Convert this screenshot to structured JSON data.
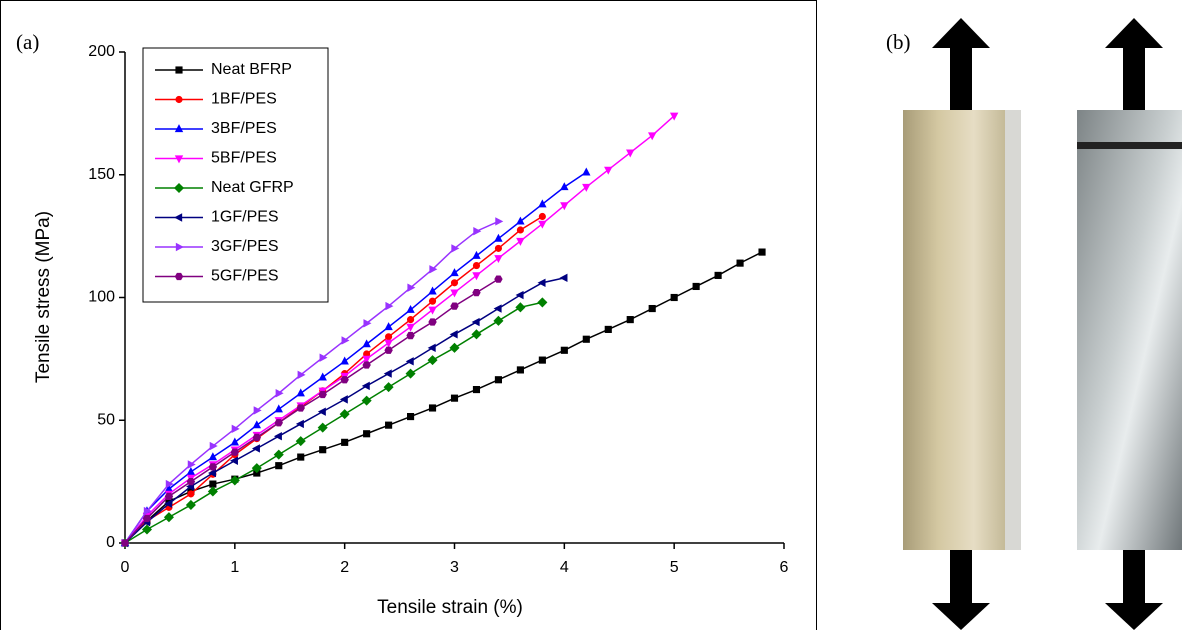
{
  "chart_data": {
    "type": "line",
    "panel_labels": [
      "(a)",
      "(b)"
    ],
    "xlabel": "Tensile strain (%)",
    "ylabel": "Tensile stress (MPa)",
    "x": [
      0,
      0.2,
      0.4,
      0.6,
      0.8,
      1.0,
      1.2,
      1.4,
      1.6,
      1.8,
      2.0,
      2.2,
      2.4,
      2.6,
      2.8,
      3.0,
      3.2,
      3.4,
      3.6,
      3.8,
      4.0,
      4.2,
      4.4,
      4.6,
      4.8,
      5.0,
      5.2,
      5.4,
      5.6,
      5.8
    ],
    "xlim": [
      0,
      6
    ],
    "xticks": [
      0,
      1,
      2,
      3,
      4,
      5,
      6
    ],
    "ylim": [
      0,
      200
    ],
    "yticks": [
      0,
      50,
      100,
      150,
      200
    ],
    "legend": "upper left",
    "series": [
      {
        "name": "Neat BFRP",
        "color": "#000000",
        "marker": "square",
        "values": [
          0,
          9,
          17,
          21,
          24,
          26,
          28.5,
          31.5,
          35,
          38,
          41,
          44.5,
          48,
          51.5,
          55,
          59,
          62.5,
          66.5,
          70.5,
          74.5,
          78.5,
          83,
          87,
          91,
          95.5,
          100,
          104.5,
          109,
          114,
          118.5
        ]
      },
      {
        "name": "1BF/PES",
        "color": "#ff0000",
        "marker": "circle",
        "values": [
          0,
          9,
          14.5,
          20,
          28,
          36,
          42.5,
          49,
          55.5,
          62,
          69,
          77,
          84,
          91,
          98.5,
          106,
          113,
          120,
          127.5,
          133,
          null,
          null,
          null,
          null,
          null,
          null,
          null,
          null,
          null,
          null
        ]
      },
      {
        "name": "3BF/PES",
        "color": "#0000ff",
        "marker": "triangle-up",
        "values": [
          0,
          13,
          22,
          29,
          35,
          41,
          48,
          54.5,
          61,
          67.5,
          74,
          81,
          88,
          95,
          102.5,
          110,
          117,
          124,
          131,
          138,
          145,
          151,
          null,
          null,
          null,
          null,
          null,
          null,
          null,
          null
        ]
      },
      {
        "name": "5BF/PES",
        "color": "#ff00ff",
        "marker": "triangle-down",
        "values": [
          0,
          11,
          20,
          26.5,
          32,
          38,
          44,
          50,
          56,
          62,
          68,
          75,
          81.5,
          88,
          95,
          102,
          109,
          116,
          123,
          130,
          137.5,
          145,
          152,
          159,
          166,
          174,
          null,
          null,
          null,
          null
        ]
      },
      {
        "name": "Neat GFRP",
        "color": "#008000",
        "marker": "diamond",
        "values": [
          0,
          5.5,
          10.5,
          15.5,
          21,
          25.5,
          30.5,
          36,
          41.5,
          47,
          52.5,
          58,
          63.5,
          69,
          74.5,
          79.5,
          85,
          90.5,
          96,
          98,
          null,
          null,
          null,
          null,
          null,
          null,
          null,
          null,
          null,
          null
        ]
      },
      {
        "name": "1GF/PES",
        "color": "#000080",
        "marker": "triangle-left",
        "values": [
          0,
          8.5,
          16,
          23,
          28.5,
          33.5,
          38.5,
          43.5,
          48.5,
          53.5,
          58.5,
          64,
          69,
          74,
          79.5,
          85,
          90,
          95.5,
          101,
          106,
          108,
          null,
          null,
          null,
          null,
          null,
          null,
          null,
          null,
          null
        ]
      },
      {
        "name": "3GF/PES",
        "color": "#9933ff",
        "marker": "triangle-right",
        "values": [
          0,
          13,
          24,
          32,
          39.5,
          46.5,
          54,
          61,
          68.5,
          75.5,
          82.5,
          89.5,
          96.5,
          104,
          111.5,
          120,
          127,
          131,
          null,
          null,
          null,
          null,
          null,
          null,
          null,
          null,
          null,
          null,
          null,
          null
        ]
      },
      {
        "name": "5GF/PES",
        "color": "#800080",
        "marker": "hexagon",
        "values": [
          0,
          10,
          19,
          25,
          31,
          37,
          43,
          49,
          55,
          60.5,
          66.5,
          72.5,
          78.5,
          84.5,
          90,
          96.5,
          102,
          107.5,
          null,
          null,
          null,
          null,
          null,
          null,
          null,
          null,
          null,
          null,
          null,
          null
        ]
      }
    ]
  }
}
